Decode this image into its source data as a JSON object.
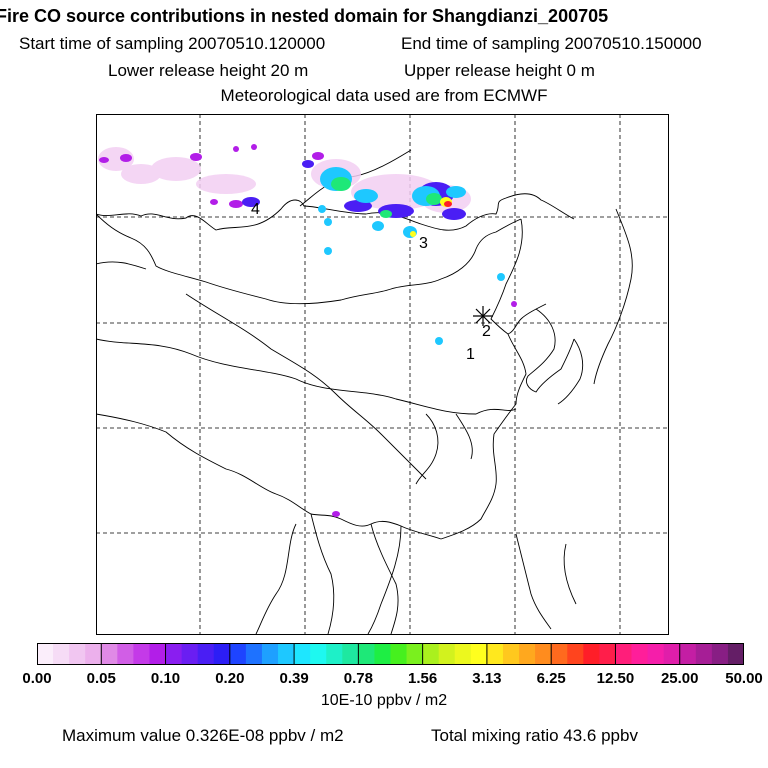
{
  "header": {
    "title": "Fire CO source contributions in nested domain for Shangdianzi_200705",
    "start_time": "Start time of sampling 20070510.120000",
    "end_time": "End time of sampling 20070510.150000",
    "lower_height": "Lower release height   20 m",
    "upper_height": "Upper release height    0 m",
    "met_data": "Meteorological data used are from ECMWF"
  },
  "map": {
    "markers": [
      {
        "label": "1",
        "kind": "number"
      },
      {
        "label": "2",
        "kind": "receptor"
      },
      {
        "label": "3",
        "kind": "number"
      },
      {
        "label": "4",
        "kind": "number"
      }
    ]
  },
  "colorbar": {
    "ticks": [
      "0.00",
      "0.05",
      "0.10",
      "0.20",
      "0.39",
      "0.78",
      "1.56",
      "3.13",
      "6.25",
      "12.50",
      "25.00",
      "50.00"
    ],
    "colors": [
      "#fbeefb",
      "#f6dcf6",
      "#f1c6f1",
      "#ecb0ec",
      "#e08ae6",
      "#d15ee6",
      "#c43ae8",
      "#b21ee8",
      "#8a1ef0",
      "#6a1ef2",
      "#4a1ef4",
      "#2c1ef6",
      "#1e44ff",
      "#1e72ff",
      "#1ea0ff",
      "#1ec8ff",
      "#1ee6ff",
      "#1ef8f0",
      "#1ef0c8",
      "#1ee8a0",
      "#1ee878",
      "#1eee44",
      "#46f01e",
      "#7af01e",
      "#aaf01e",
      "#d2f21e",
      "#ecf81e",
      "#ffff1e",
      "#ffe81e",
      "#ffc81e",
      "#ffa81e",
      "#ff8c1e",
      "#ff6a1e",
      "#ff441e",
      "#ff1e28",
      "#ff1e4a",
      "#ff1e7a",
      "#ff1e9a",
      "#f51eaa",
      "#e01eaa",
      "#c41ea4",
      "#a61e96",
      "#881e84",
      "#641e66"
    ],
    "unit": "10E-10 ppbv / m2"
  },
  "footer": {
    "max_value": "Maximum value  0.326E-08 ppbv / m2",
    "total_mixing": "Total mixing ratio       43.6 ppbv"
  }
}
